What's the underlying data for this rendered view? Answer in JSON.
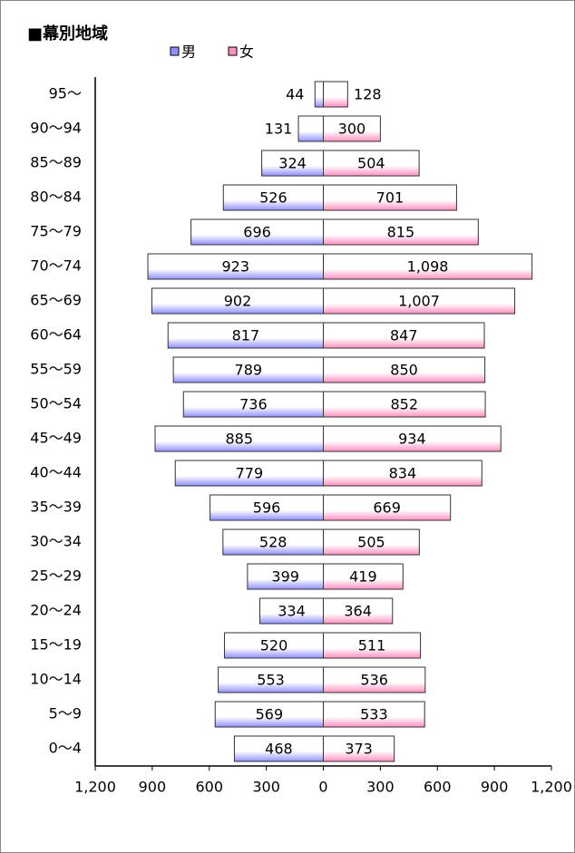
{
  "chart_data": {
    "type": "pyramid",
    "title": "■幕別地域",
    "categories": [
      "95～",
      "90～94",
      "85～89",
      "80～84",
      "75～79",
      "70～74",
      "65～69",
      "60～64",
      "55～59",
      "50～54",
      "45～49",
      "40～44",
      "35～39",
      "30～34",
      "25～29",
      "20～24",
      "15～19",
      "10～14",
      "5～9",
      "0～4"
    ],
    "series": [
      {
        "name": "男",
        "color": "#8f8fff",
        "values": [
          44,
          131,
          324,
          526,
          696,
          923,
          902,
          817,
          789,
          736,
          885,
          779,
          596,
          528,
          399,
          334,
          520,
          553,
          569,
          468
        ]
      },
      {
        "name": "女",
        "color": "#ff8fc0",
        "values": [
          128,
          300,
          504,
          701,
          815,
          1098,
          1007,
          847,
          850,
          852,
          934,
          834,
          669,
          505,
          419,
          364,
          511,
          536,
          533,
          373
        ],
        "value_labels": [
          "128",
          "300",
          "504",
          "701",
          "815",
          "1,098",
          "1,007",
          "847",
          "850",
          "852",
          "934",
          "834",
          "669",
          "505",
          "419",
          "364",
          "511",
          "536",
          "533",
          "373"
        ]
      }
    ],
    "xlim": [
      -1200,
      1200
    ],
    "xticks": [
      {
        "value": -1200,
        "label": "1,200"
      },
      {
        "value": -900,
        "label": "900"
      },
      {
        "value": -600,
        "label": "600"
      },
      {
        "value": -300,
        "label": "300"
      },
      0,
      300,
      600,
      900,
      {
        "value": 1200,
        "label": "1,200"
      }
    ]
  }
}
